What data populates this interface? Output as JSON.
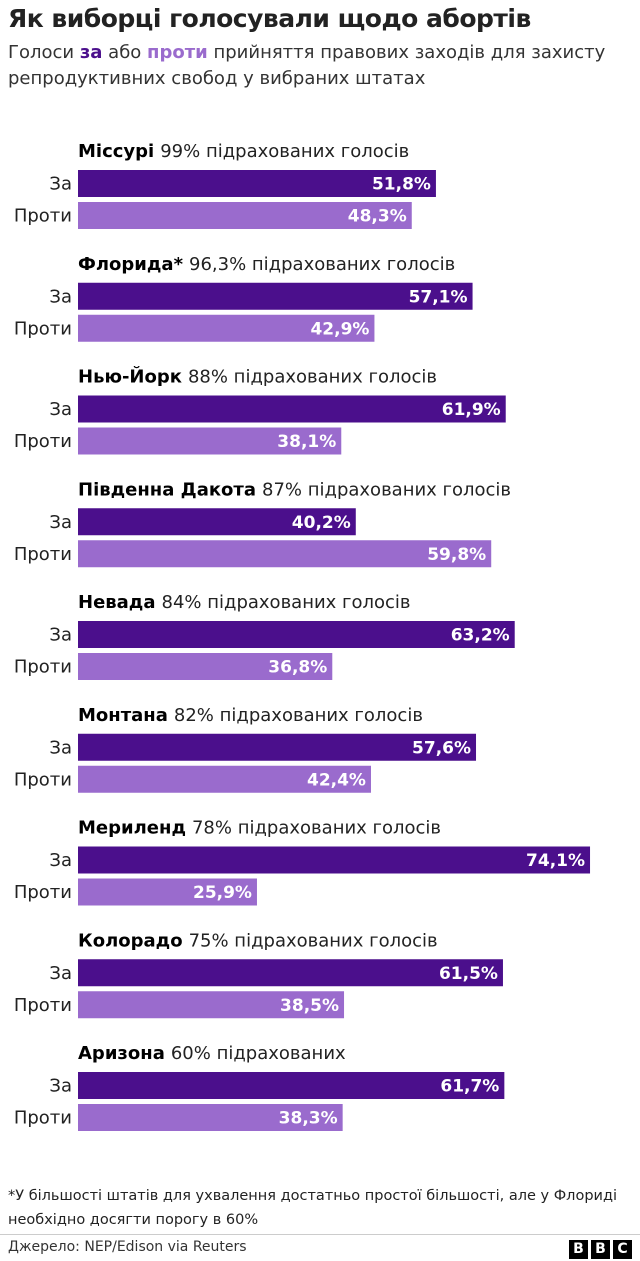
{
  "chart_data": {
    "type": "bar",
    "title": "Як виборці голосували щодо абортів",
    "subtitle": [
      "Голоси ",
      "за",
      " або ",
      "проти",
      " прийняття правових заходів для захисту репродуктивних свобод у вибраних штатах"
    ],
    "categories": [
      "Міссурі",
      "Флорида*",
      "Нью-Йорк",
      "Південна Дакота",
      "Невада",
      "Монтана",
      "Мериленд",
      "Колорадо",
      "Аризона"
    ],
    "counted": [
      "99% підрахованих голосів",
      "96,3% підрахованих голосів",
      "88% підрахованих голосів",
      "87% підрахованих голосів",
      "84% підрахованих голосів",
      "82% підрахованих голосів",
      "78% підрахованих голосів",
      "75% підрахованих голосів",
      "60% підрахованих"
    ],
    "series": [
      {
        "name": "За",
        "color": "#4b0f8c",
        "values": [
          51.8,
          57.1,
          61.9,
          40.2,
          63.2,
          57.6,
          74.1,
          61.5,
          61.7
        ],
        "value_labels": [
          "51,8%",
          "57,1%",
          "61,9%",
          "40,2%",
          "63,2%",
          "57,6%",
          "74,1%",
          "61,5%",
          "61,7%"
        ]
      },
      {
        "name": "Проти",
        "color": "#9a6bcd",
        "values": [
          48.3,
          42.9,
          38.1,
          59.8,
          36.8,
          42.4,
          25.9,
          38.5,
          38.3
        ],
        "value_labels": [
          "48,3%",
          "42,9%",
          "38,1%",
          "59,8%",
          "36,8%",
          "42,4%",
          "25,9%",
          "38,5%",
          "38,3%"
        ]
      }
    ],
    "footnote": "*У більшості штатів для ухвалення достатньо простої більшості, але у Флориді необхідно досягти порогу в 60%",
    "source": "Джерело: NEP/Edison via Reuters",
    "brand": [
      "B",
      "B",
      "C"
    ]
  }
}
